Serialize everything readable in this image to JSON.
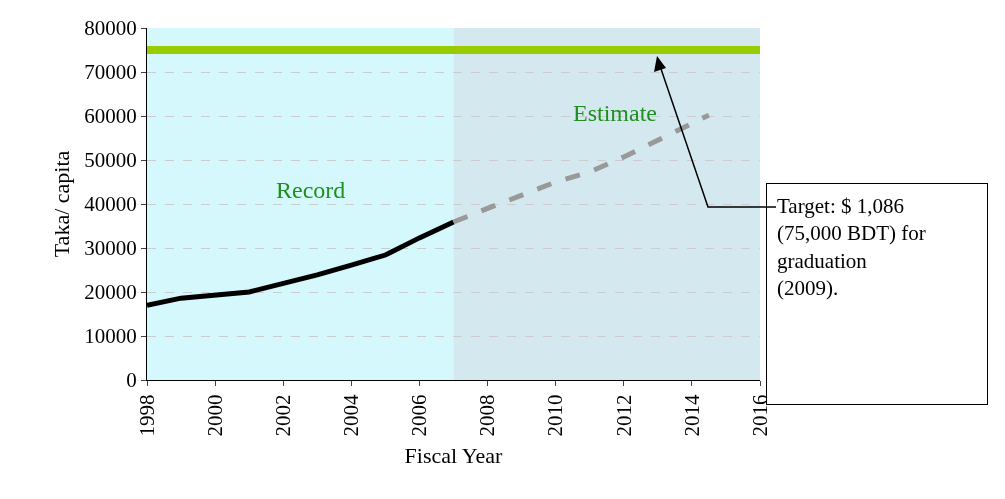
{
  "chart_data": {
    "type": "line",
    "xlabel": "Fiscal Year",
    "ylabel": "Taka/ capita",
    "xlim": [
      1998,
      2016
    ],
    "xticks": [
      1998,
      2000,
      2002,
      2004,
      2006,
      2008,
      2010,
      2012,
      2014,
      2016
    ],
    "ylim": [
      0,
      80000
    ],
    "yticks": [
      0,
      10000,
      20000,
      30000,
      40000,
      50000,
      60000,
      70000,
      80000
    ],
    "grid": "y",
    "marker": "none",
    "series": [
      {
        "color": "#000000",
        "line_style": "solid",
        "x": [
          1998,
          1999,
          2001,
          2003,
          2004,
          2005,
          2006,
          2007
        ],
        "values": [
          17000,
          18600,
          20000,
          23900,
          26100,
          28400,
          32300,
          35900
        ]
      },
      {
        "color": "#999999",
        "line_style": "dashed",
        "x": [
          2007,
          2008,
          2010,
          2011,
          2012,
          2014.5
        ],
        "values": [
          35900,
          39000,
          45000,
          47300,
          50700,
          60200
        ]
      }
    ],
    "bands": [
      {
        "axis": "x",
        "from": 1998,
        "to": 2007,
        "label": "Record",
        "color": "#d4f8fb"
      },
      {
        "axis": "x",
        "from": 2007,
        "to": 2016,
        "label": "Estimate",
        "color": "#d3e8ef"
      }
    ],
    "ref_lines": [
      {
        "axis": "y",
        "value": 75000,
        "color": "#99cc00"
      }
    ],
    "annotations": [
      "Target: $ 1,086 (75,000 BDT) for graduation (2009)."
    ]
  }
}
